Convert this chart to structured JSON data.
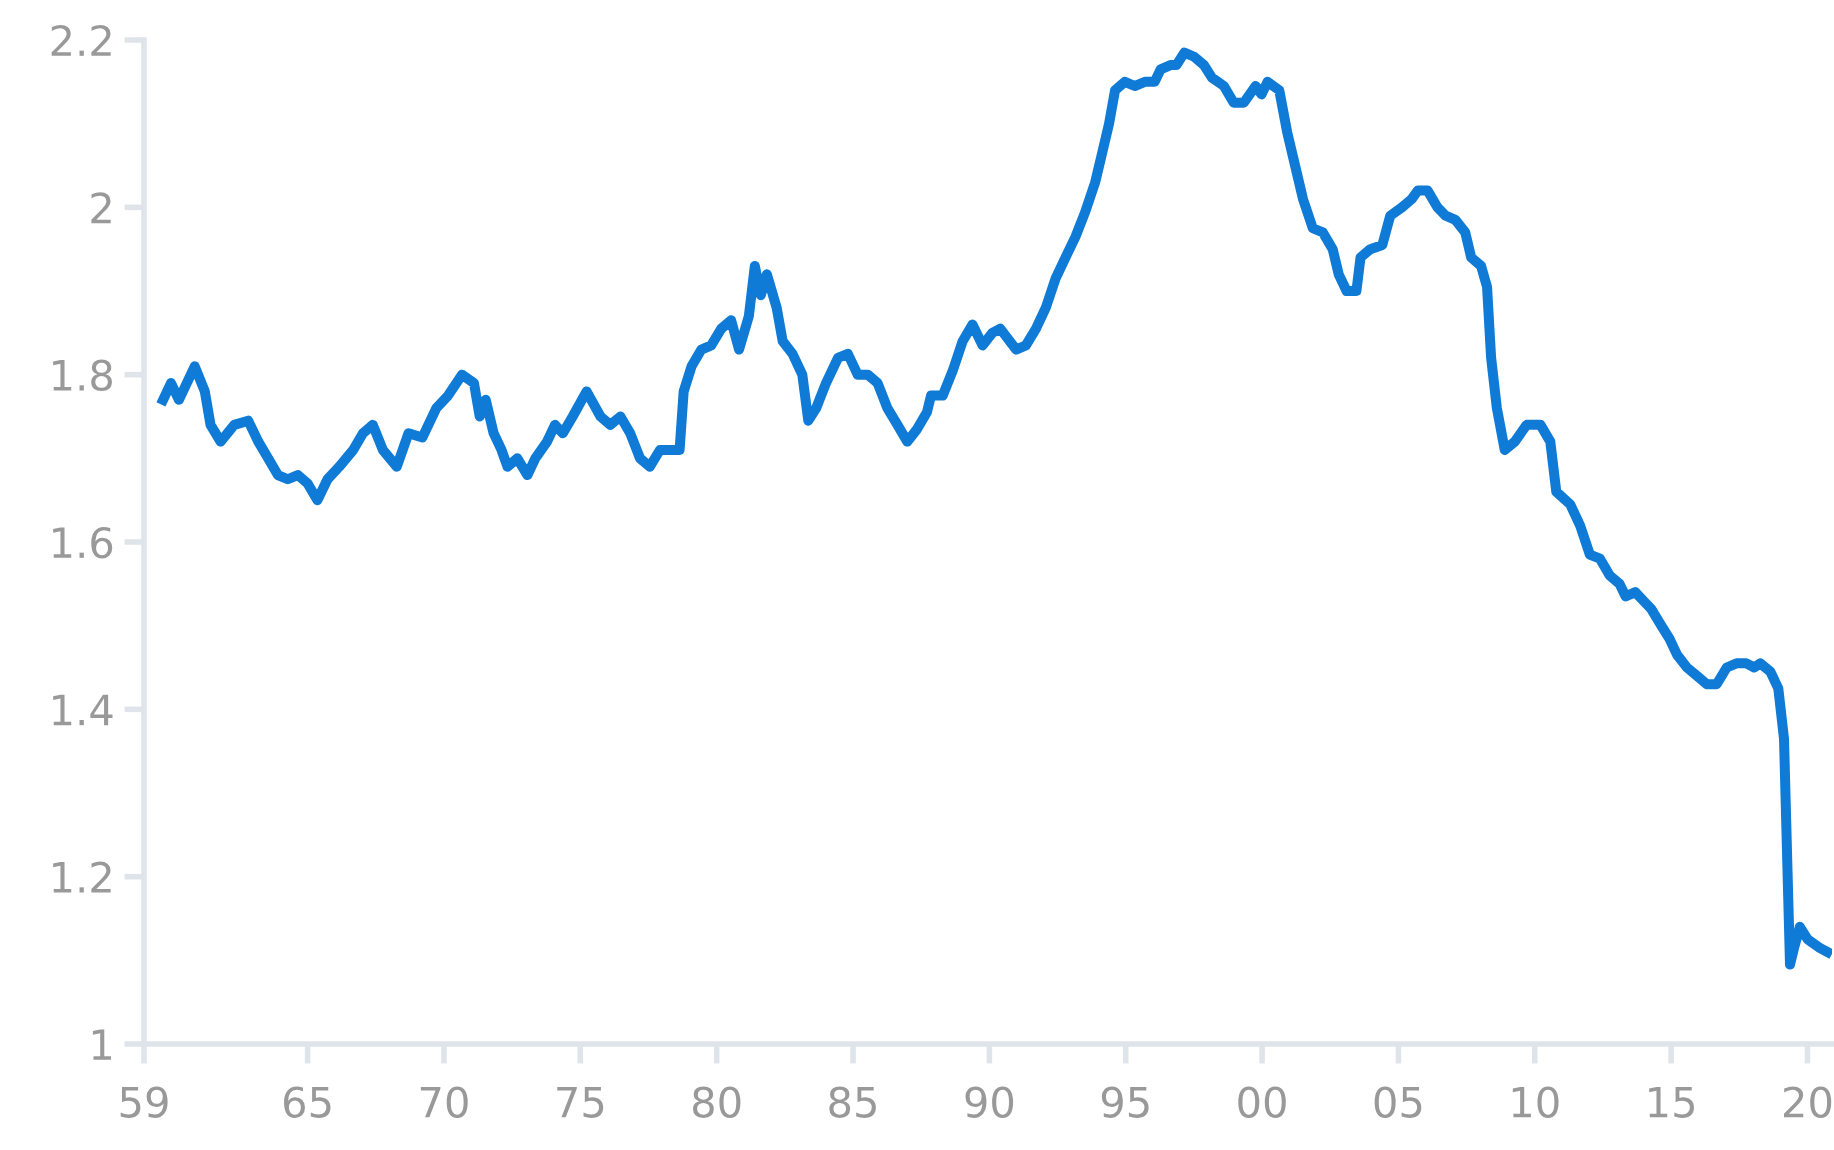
{
  "chart_data": {
    "type": "line",
    "x": [
      1959.7,
      1959.99,
      1960.28,
      1960.86,
      1961.23,
      1961.44,
      1961.81,
      1962.31,
      1962.82,
      1963.19,
      1963.55,
      1963.91,
      1964.27,
      1964.64,
      1965.0,
      1965.36,
      1965.73,
      1966.16,
      1966.67,
      1967.03,
      1967.39,
      1967.76,
      1968.27,
      1968.7,
      1969.21,
      1969.72,
      1970.15,
      1970.66,
      1971.1,
      1971.31,
      1971.53,
      1971.82,
      1972.11,
      1972.33,
      1972.69,
      1973.06,
      1973.35,
      1973.78,
      1974.07,
      1974.36,
      1974.72,
      1975.23,
      1975.74,
      1976.1,
      1976.47,
      1976.83,
      1977.19,
      1977.55,
      1977.92,
      1978.28,
      1978.64,
      1978.79,
      1979.08,
      1979.44,
      1979.8,
      1980.17,
      1980.53,
      1980.82,
      1981.18,
      1981.4,
      1981.62,
      1981.84,
      1982.2,
      1982.42,
      1982.78,
      1983.14,
      1983.36,
      1983.65,
      1984.01,
      1984.45,
      1984.81,
      1985.17,
      1985.54,
      1985.9,
      1986.26,
      1986.63,
      1986.99,
      1987.35,
      1987.71,
      1987.86,
      1988.29,
      1988.66,
      1989.02,
      1989.38,
      1989.75,
      1990.11,
      1990.4,
      1990.98,
      1991.34,
      1991.71,
      1992.07,
      1992.43,
      1992.79,
      1993.16,
      1993.52,
      1993.88,
      1994.1,
      1994.39,
      1994.61,
      1994.97,
      1995.33,
      1995.7,
      1996.06,
      1996.28,
      1996.64,
      1996.86,
      1997.15,
      1997.51,
      1997.87,
      1998.16,
      1998.6,
      1998.96,
      1999.33,
      1999.76,
      1999.98,
      2000.2,
      2000.63,
      2000.92,
      2001.21,
      2001.5,
      2001.86,
      2002.23,
      2002.59,
      2002.81,
      2003.1,
      2003.46,
      2003.61,
      2003.97,
      2004.41,
      2004.7,
      2005.13,
      2005.49,
      2005.71,
      2006.07,
      2006.43,
      2006.73,
      2007.09,
      2007.45,
      2007.67,
      2008.03,
      2008.25,
      2008.4,
      2008.61,
      2008.9,
      2009.27,
      2009.7,
      2010.21,
      2010.57,
      2010.79,
      2011.3,
      2011.66,
      2012.02,
      2012.39,
      2012.75,
      2013.11,
      2013.33,
      2013.69,
      2013.98,
      2014.27,
      2014.64,
      2014.93,
      2015.22,
      2015.58,
      2015.95,
      2016.31,
      2016.67,
      2017.04,
      2017.4,
      2017.76,
      2018.05,
      2018.27,
      2018.64,
      2018.93,
      2019.14,
      2019.36,
      2019.51,
      2019.72,
      2020.01,
      2020.45,
      2020.73
    ],
    "series": [
      {
        "color": "#0f7bd6",
        "values": [
          1.77,
          1.79,
          1.77,
          1.81,
          1.78,
          1.74,
          1.72,
          1.74,
          1.745,
          1.72,
          1.7,
          1.68,
          1.675,
          1.68,
          1.67,
          1.65,
          1.675,
          1.69,
          1.71,
          1.73,
          1.74,
          1.71,
          1.69,
          1.73,
          1.725,
          1.76,
          1.775,
          1.8,
          1.79,
          1.75,
          1.77,
          1.73,
          1.71,
          1.69,
          1.7,
          1.68,
          1.7,
          1.72,
          1.74,
          1.73,
          1.75,
          1.78,
          1.75,
          1.74,
          1.75,
          1.73,
          1.7,
          1.69,
          1.71,
          1.71,
          1.71,
          1.78,
          1.81,
          1.83,
          1.835,
          1.855,
          1.865,
          1.83,
          1.87,
          1.93,
          1.895,
          1.92,
          1.88,
          1.84,
          1.825,
          1.8,
          1.745,
          1.76,
          1.79,
          1.82,
          1.825,
          1.8,
          1.8,
          1.79,
          1.76,
          1.74,
          1.72,
          1.735,
          1.755,
          1.775,
          1.775,
          1.805,
          1.84,
          1.86,
          1.835,
          1.85,
          1.855,
          1.83,
          1.835,
          1.855,
          1.88,
          1.915,
          1.94,
          1.965,
          1.995,
          2.03,
          2.06,
          2.1,
          2.14,
          2.15,
          2.145,
          2.15,
          2.15,
          2.165,
          2.17,
          2.17,
          2.185,
          2.18,
          2.17,
          2.155,
          2.145,
          2.125,
          2.125,
          2.145,
          2.135,
          2.15,
          2.14,
          2.09,
          2.05,
          2.01,
          1.975,
          1.97,
          1.95,
          1.92,
          1.9,
          1.9,
          1.94,
          1.95,
          1.955,
          1.99,
          2.0,
          2.01,
          2.02,
          2.02,
          2.0,
          1.99,
          1.985,
          1.97,
          1.94,
          1.93,
          1.905,
          1.82,
          1.76,
          1.71,
          1.72,
          1.74,
          1.74,
          1.72,
          1.66,
          1.645,
          1.62,
          1.585,
          1.58,
          1.56,
          1.55,
          1.535,
          1.54,
          1.53,
          1.52,
          1.5,
          1.485,
          1.465,
          1.45,
          1.44,
          1.43,
          1.43,
          1.45,
          1.455,
          1.455,
          1.45,
          1.455,
          1.445,
          1.425,
          1.365,
          1.095,
          1.115,
          1.14,
          1.125,
          1.115,
          1.11
        ]
      }
    ],
    "xlim": [
      1959,
      2020.9
    ],
    "xticks": [
      {
        "value": 1959,
        "label": "59"
      },
      {
        "value": 1965,
        "label": "65"
      },
      {
        "value": 1970,
        "label": "70"
      },
      {
        "value": 1975,
        "label": "75"
      },
      {
        "value": 1980,
        "label": "80"
      },
      {
        "value": 1985,
        "label": "85"
      },
      {
        "value": 1990,
        "label": "90"
      },
      {
        "value": 1995,
        "label": "95"
      },
      {
        "value": 2000,
        "label": "00"
      },
      {
        "value": 2005,
        "label": "05"
      },
      {
        "value": 2010,
        "label": "10"
      },
      {
        "value": 2015,
        "label": "15"
      },
      {
        "value": 2020,
        "label": "20"
      }
    ],
    "ylim": [
      1,
      2.2
    ],
    "yticks": [
      1,
      1.2,
      1.4,
      1.6,
      1.8,
      2,
      2.2
    ],
    "grid": false,
    "marker": "none",
    "line_style": "solid"
  }
}
